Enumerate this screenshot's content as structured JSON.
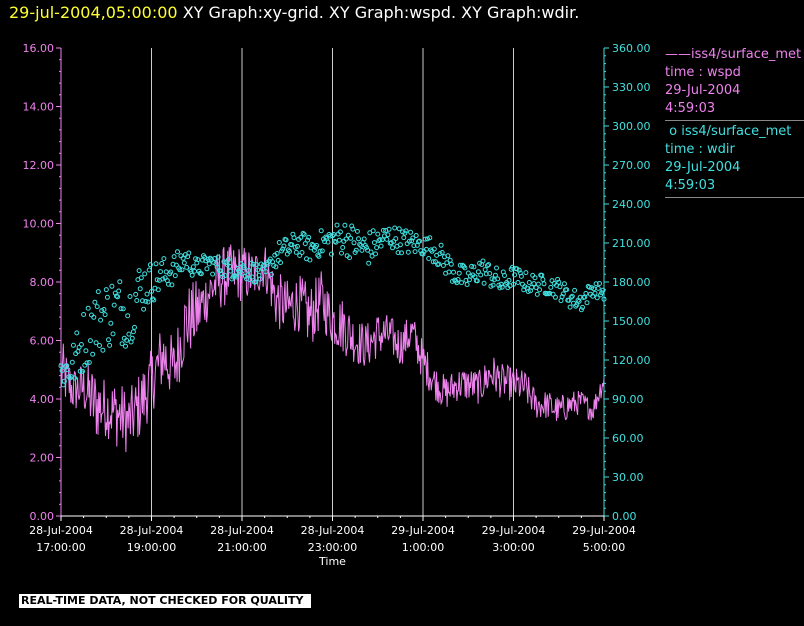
{
  "header": {
    "timestamp": "29-jul-2004,05:00:00",
    "graphs": "XY Graph:xy-grid.  XY Graph:wspd.  XY Graph:wdir."
  },
  "legend": [
    {
      "marker": "——",
      "label": "iss4/surface_met",
      "var": "time : wspd",
      "date": "29-Jul-2004",
      "time": "4:59:03",
      "color": "#ee82ee"
    },
    {
      "marker": "o",
      "label": "iss4/surface_met",
      "var": "time : wdir",
      "date": "29-Jul-2004",
      "time": "4:59:03",
      "color": "#40e0e0"
    }
  ],
  "footer": "REAL-TIME DATA, NOT CHECKED FOR QUALITY",
  "chart_data": {
    "type": "line",
    "xlabel": "Time",
    "x_ticks": [
      {
        "date": "28-Jul-2004",
        "time": "17:00:00"
      },
      {
        "date": "28-Jul-2004",
        "time": "19:00:00"
      },
      {
        "date": "28-Jul-2004",
        "time": "21:00:00"
      },
      {
        "date": "28-Jul-2004",
        "time": "23:00:00"
      },
      {
        "date": "29-Jul-2004",
        "time": "1:00:00"
      },
      {
        "date": "29-Jul-2004",
        "time": "3:00:00"
      },
      {
        "date": "29-Jul-2004",
        "time": "5:00:00"
      }
    ],
    "x_range": [
      "28-Jul-2004 17:00:00",
      "29-Jul-2004 05:00:00"
    ],
    "grid": "vertical",
    "y_left": {
      "range": [
        0,
        16
      ],
      "ticks": [
        "0.00",
        "2.00",
        "4.00",
        "6.00",
        "8.00",
        "10.00",
        "12.00",
        "14.00",
        "16.00"
      ],
      "color": "#ee82ee"
    },
    "y_right": {
      "range": [
        0,
        360
      ],
      "ticks": [
        "0.00",
        "30.00",
        "60.00",
        "90.00",
        "120.00",
        "150.00",
        "180.00",
        "210.00",
        "240.00",
        "270.00",
        "300.00",
        "330.00",
        "360.00"
      ],
      "color": "#40e0e0"
    },
    "series": [
      {
        "name": "wspd",
        "axis": "left",
        "style": "line",
        "color": "#ee82ee",
        "x_hours": [
          17.0,
          17.25,
          17.5,
          17.75,
          18.0,
          18.25,
          18.5,
          18.75,
          19.0,
          19.25,
          19.5,
          19.75,
          20.0,
          20.25,
          20.5,
          20.75,
          21.0,
          21.25,
          21.5,
          21.75,
          22.0,
          22.25,
          22.5,
          22.75,
          23.0,
          23.25,
          23.5,
          23.75,
          24.0,
          24.25,
          24.5,
          24.75,
          25.0,
          25.25,
          25.5,
          25.75,
          26.0,
          26.25,
          26.5,
          26.75,
          27.0,
          27.25,
          27.5,
          27.75,
          28.0,
          28.25,
          28.5,
          28.75,
          29.0
        ],
        "values": [
          5.0,
          4.3,
          4.4,
          3.8,
          3.7,
          3.5,
          3.2,
          3.8,
          4.6,
          5.5,
          5.0,
          6.6,
          6.9,
          7.6,
          8.1,
          8.3,
          8.3,
          8.2,
          8.6,
          7.4,
          7.1,
          7.3,
          6.8,
          7.4,
          6.7,
          6.5,
          6.0,
          5.8,
          6.2,
          6.2,
          5.8,
          6.3,
          5.3,
          4.6,
          4.2,
          4.5,
          4.5,
          4.4,
          4.9,
          4.6,
          4.5,
          4.4,
          3.8,
          3.8,
          3.6,
          3.8,
          3.9,
          3.6,
          4.7
        ],
        "noise": [
          1.1,
          0.8,
          0.9,
          1.3,
          1.0,
          1.2,
          1.1,
          1.2,
          1.1,
          1.2,
          1.1,
          1.3,
          1.2,
          0.9,
          1.1,
          1.0,
          1.0,
          0.9,
          0.8,
          1.0,
          1.0,
          1.0,
          1.1,
          1.0,
          0.9,
          1.0,
          0.8,
          0.8,
          0.8,
          0.7,
          0.7,
          0.7,
          0.7,
          0.6,
          0.6,
          0.6,
          0.6,
          0.6,
          0.7,
          0.6,
          0.6,
          0.6,
          0.5,
          0.5,
          0.5,
          0.5,
          0.4,
          0.4,
          0.4
        ]
      },
      {
        "name": "wdir",
        "axis": "right",
        "style": "points",
        "color": "#40e0e0",
        "x_hours": [
          17.0,
          17.25,
          17.5,
          17.75,
          18.0,
          18.25,
          18.5,
          18.75,
          19.0,
          19.25,
          19.5,
          19.75,
          20.0,
          20.25,
          20.5,
          20.75,
          21.0,
          21.25,
          21.5,
          21.75,
          22.0,
          22.25,
          22.5,
          22.75,
          23.0,
          23.25,
          23.5,
          23.75,
          24.0,
          24.25,
          24.5,
          24.75,
          25.0,
          25.25,
          25.5,
          25.75,
          26.0,
          26.25,
          26.5,
          26.75,
          27.0,
          27.25,
          27.5,
          27.75,
          28.0,
          28.25,
          28.5,
          28.75,
          29.0
        ],
        "values": [
          110,
          115,
          135,
          150,
          155,
          160,
          155,
          175,
          180,
          185,
          190,
          198,
          190,
          195,
          192,
          190,
          190,
          188,
          185,
          200,
          205,
          210,
          205,
          210,
          212,
          215,
          210,
          205,
          210,
          215,
          212,
          210,
          208,
          205,
          195,
          185,
          182,
          190,
          185,
          178,
          185,
          180,
          178,
          178,
          175,
          168,
          165,
          175,
          172
        ],
        "noise": [
          15,
          18,
          24,
          26,
          28,
          28,
          26,
          22,
          16,
          14,
          12,
          10,
          8,
          8,
          8,
          8,
          8,
          8,
          8,
          10,
          10,
          10,
          10,
          10,
          12,
          14,
          14,
          14,
          12,
          10,
          10,
          10,
          8,
          10,
          10,
          10,
          10,
          10,
          10,
          10,
          8,
          8,
          8,
          8,
          8,
          8,
          8,
          6,
          6
        ]
      }
    ]
  }
}
